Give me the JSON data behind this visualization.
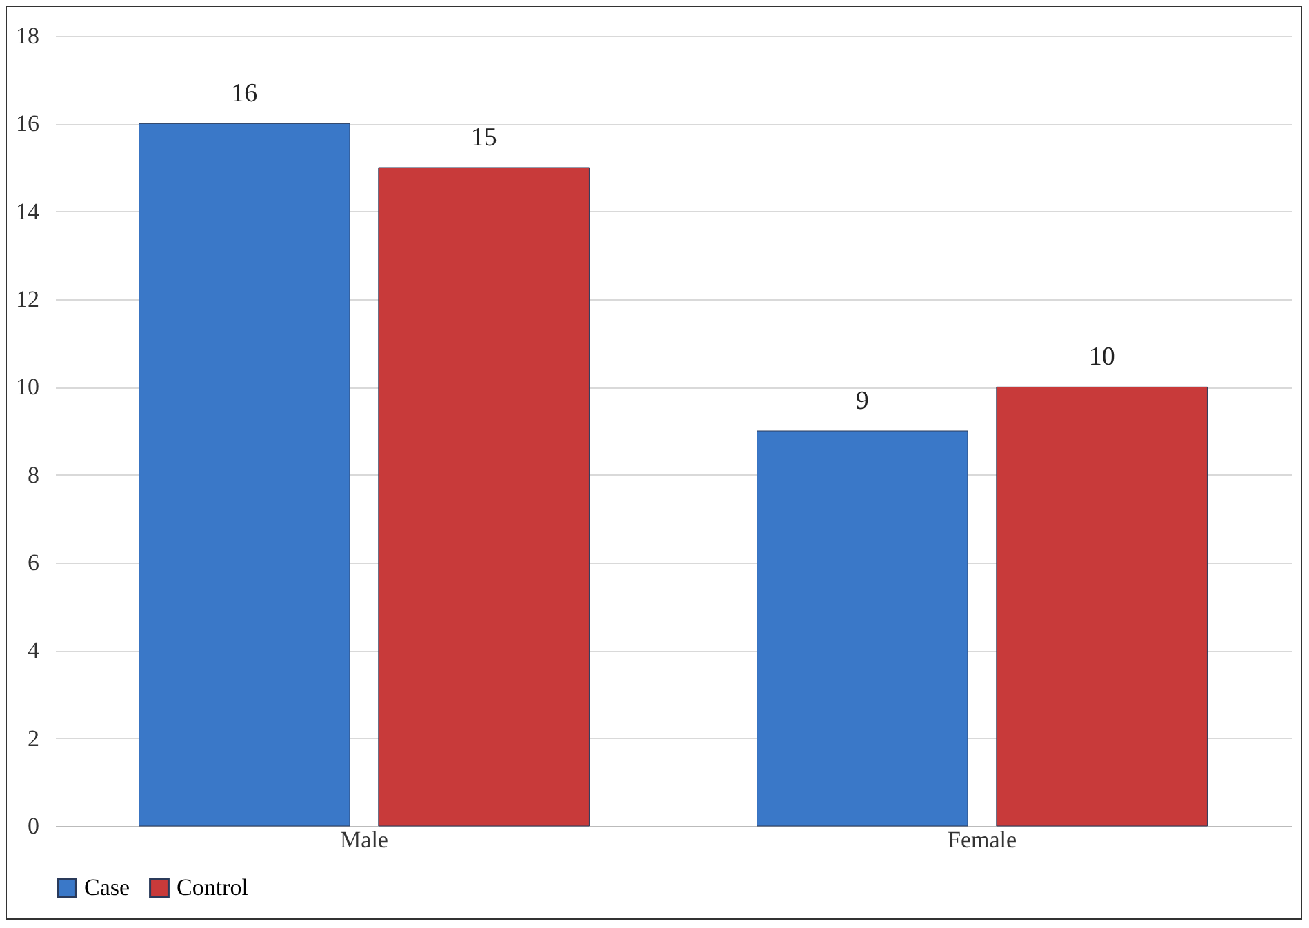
{
  "chart_data": {
    "type": "bar",
    "categories": [
      "Male",
      "Female"
    ],
    "series": [
      {
        "name": "Case",
        "color": "#3a78c8",
        "values": [
          16,
          9
        ]
      },
      {
        "name": "Control",
        "color": "#c83a3a",
        "values": [
          15,
          10
        ]
      }
    ],
    "ylim": [
      0,
      18
    ],
    "yticks": [
      0,
      2,
      4,
      6,
      8,
      10,
      12,
      14,
      16,
      18
    ],
    "grid": "y",
    "legend": "bottom",
    "data_labels": true
  }
}
